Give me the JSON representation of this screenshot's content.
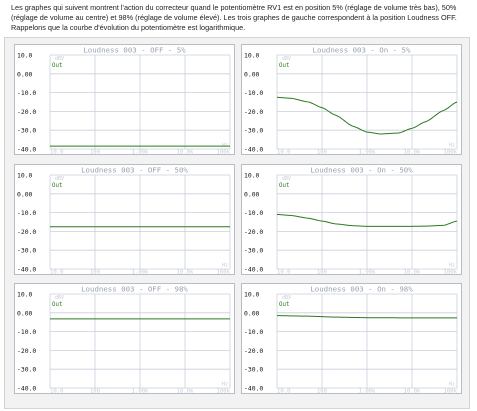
{
  "intro_text": "Les graphes qui suivent montrent l'action du correcteur quand le potentiomètre RV1 est en position 5% (réglage de volume très bas), 50% (réglage de volume au centre) et 98% (réglage de volume élevé). Les trois graphes de gauche correspondent à la position Loudness OFF. Rappelons que la courbe d'évolution du potentiomètre est logarithmique.",
  "colors": {
    "plot_background": "#ffffff",
    "grid": "#c9cfdb",
    "curve": "#2a7a1e",
    "title_text": "#9aa1ad",
    "tick_text": "#111111",
    "faint_text": "#c8ccd4",
    "panel_border": "#b8bcc4"
  },
  "chart_data": [
    {
      "type": "line",
      "title": "Loudness 003 - OFF - 5%",
      "legend": "Out",
      "x_scale": "log",
      "xlim": [
        10,
        100000
      ],
      "ylim": [
        -40,
        10
      ],
      "ytick_labels": [
        "10.0",
        "0.00",
        "-10.0",
        "-20.0",
        "-30.0",
        "-40.0"
      ],
      "xtick_labels": [
        "10.0",
        "100",
        "1.00k",
        "10.0k",
        "100k"
      ],
      "corner_labels": [
        "dBV",
        "Hz"
      ],
      "series": [
        {
          "name": "Out",
          "x": [
            10,
            100000
          ],
          "y": [
            -38.5,
            -38.5
          ]
        }
      ]
    },
    {
      "type": "line",
      "title": "Loudness 003 - On - 5%",
      "legend": "Out",
      "x_scale": "log",
      "xlim": [
        10,
        100000
      ],
      "ylim": [
        -40,
        10
      ],
      "ytick_labels": [
        "10.0",
        "0.00",
        "-10.0",
        "-20.0",
        "-30.0",
        "-40.0"
      ],
      "xtick_labels": [
        "10.0",
        "100",
        "1.00k",
        "10.0k",
        "100k"
      ],
      "corner_labels": [
        "dBV",
        "Hz"
      ],
      "series": [
        {
          "name": "Out",
          "x": [
            10,
            20,
            50,
            100,
            200,
            500,
            1000,
            2000,
            5000,
            10000,
            20000,
            50000,
            100000
          ],
          "y": [
            -12.5,
            -13,
            -15,
            -18,
            -22,
            -28,
            -31,
            -32,
            -31.5,
            -29,
            -25.5,
            -19.5,
            -15
          ]
        }
      ]
    },
    {
      "type": "line",
      "title": "Loudness 003 - OFF - 50%",
      "legend": "Out",
      "x_scale": "log",
      "xlim": [
        10,
        100000
      ],
      "ylim": [
        -40,
        10
      ],
      "ytick_labels": [
        "10.0",
        "0.00",
        "-10.0",
        "-20.0",
        "-30.0",
        "-40.0"
      ],
      "xtick_labels": [
        "10.0",
        "100",
        "1.00k",
        "10.0k",
        "100k"
      ],
      "corner_labels": [
        "dBV",
        "Hz"
      ],
      "series": [
        {
          "name": "Out",
          "x": [
            10,
            100000
          ],
          "y": [
            -17.5,
            -17.5
          ]
        }
      ]
    },
    {
      "type": "line",
      "title": "Loudness 003 - On - 50%",
      "legend": "Out",
      "x_scale": "log",
      "xlim": [
        10,
        100000
      ],
      "ylim": [
        -40,
        10
      ],
      "ytick_labels": [
        "10.0",
        "0.00",
        "-10.0",
        "-20.0",
        "-30.0",
        "-40.0"
      ],
      "xtick_labels": [
        "10.0",
        "100",
        "1.00k",
        "10.0k",
        "100k"
      ],
      "corner_labels": [
        "dBV",
        "Hz"
      ],
      "series": [
        {
          "name": "Out",
          "x": [
            10,
            20,
            50,
            100,
            200,
            500,
            1000,
            2000,
            5000,
            10000,
            20000,
            50000,
            100000
          ],
          "y": [
            -11,
            -11.5,
            -13,
            -14.5,
            -16,
            -17,
            -17.3,
            -17.3,
            -17.3,
            -17.3,
            -17.2,
            -16.8,
            -14.5
          ]
        }
      ]
    },
    {
      "type": "line",
      "title": "Loudness 003 - OFF - 98%",
      "legend": "Out",
      "x_scale": "log",
      "xlim": [
        10,
        100000
      ],
      "ylim": [
        -40,
        10
      ],
      "ytick_labels": [
        "10.0",
        "0.00",
        "-10.0",
        "-20.0",
        "-30.0",
        "-40.0"
      ],
      "xtick_labels": [
        "10.0",
        "100",
        "1.00k",
        "10.0k",
        "100k"
      ],
      "corner_labels": [
        "dBV",
        "Hz"
      ],
      "series": [
        {
          "name": "Out",
          "x": [
            10,
            100000
          ],
          "y": [
            -3.2,
            -3.2
          ]
        }
      ]
    },
    {
      "type": "line",
      "title": "Loudness 003 - On - 98%",
      "legend": "Out",
      "x_scale": "log",
      "xlim": [
        10,
        100000
      ],
      "ylim": [
        -40,
        10
      ],
      "ytick_labels": [
        "10.0",
        "0.00",
        "-10.0",
        "-20.0",
        "-30.0",
        "-40.0"
      ],
      "xtick_labels": [
        "10.0",
        "100",
        "1.00k",
        "10.0k",
        "100k"
      ],
      "corner_labels": [
        "dBV",
        "Hz"
      ],
      "series": [
        {
          "name": "Out",
          "x": [
            10,
            50,
            200,
            1000,
            10000,
            100000
          ],
          "y": [
            -1.5,
            -1.8,
            -2.3,
            -2.6,
            -2.7,
            -2.7
          ]
        }
      ]
    }
  ]
}
